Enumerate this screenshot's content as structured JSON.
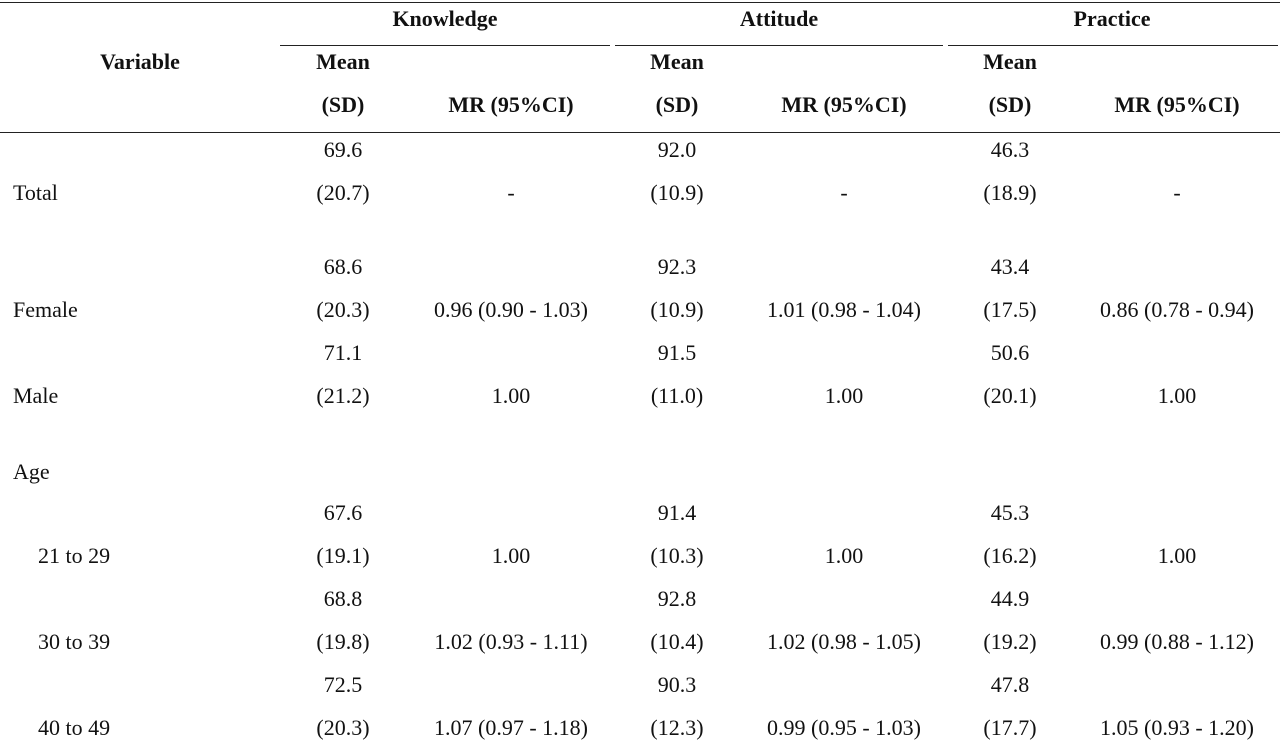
{
  "header": {
    "variable": "Variable",
    "groups": [
      "Knowledge",
      "Attitude",
      "Practice"
    ],
    "mean_line1": "Mean",
    "mean_line2": "(SD)",
    "mr_label": "MR (95%CI)"
  },
  "rows": [
    {
      "label": "Total",
      "cells": [
        {
          "mean": "69.6",
          "sd": "(20.7)",
          "mr": "-"
        },
        {
          "mean": "92.0",
          "sd": "(10.9)",
          "mr": "-"
        },
        {
          "mean": "46.3",
          "sd": "(18.9)",
          "mr": "-"
        }
      ]
    },
    {
      "label": "Female",
      "cells": [
        {
          "mean": "68.6",
          "sd": "(20.3)",
          "mr": "0.96 (0.90 - 1.03)"
        },
        {
          "mean": "92.3",
          "sd": "(10.9)",
          "mr": "1.01 (0.98 - 1.04)"
        },
        {
          "mean": "43.4",
          "sd": "(17.5)",
          "mr": "0.86 (0.78 - 0.94)"
        }
      ]
    },
    {
      "label": "Male",
      "cells": [
        {
          "mean": "71.1",
          "sd": "(21.2)",
          "mr": "1.00"
        },
        {
          "mean": "91.5",
          "sd": "(11.0)",
          "mr": "1.00"
        },
        {
          "mean": "50.6",
          "sd": "(20.1)",
          "mr": "1.00"
        }
      ]
    },
    {
      "label": "Age",
      "cells": []
    },
    {
      "label": "21 to 29",
      "cells": [
        {
          "mean": "67.6",
          "sd": "(19.1)",
          "mr": "1.00"
        },
        {
          "mean": "91.4",
          "sd": "(10.3)",
          "mr": "1.00"
        },
        {
          "mean": "45.3",
          "sd": "(16.2)",
          "mr": "1.00"
        }
      ]
    },
    {
      "label": "30 to 39",
      "cells": [
        {
          "mean": "68.8",
          "sd": "(19.8)",
          "mr": "1.02 (0.93 - 1.11)"
        },
        {
          "mean": "92.8",
          "sd": "(10.4)",
          "mr": "1.02 (0.98 - 1.05)"
        },
        {
          "mean": "44.9",
          "sd": "(19.2)",
          "mr": "0.99 (0.88 - 1.12)"
        }
      ]
    },
    {
      "label": "40 to 49",
      "cells": [
        {
          "mean": "72.5",
          "sd": "(20.3)",
          "mr": "1.07 (0.97 - 1.18)"
        },
        {
          "mean": "90.3",
          "sd": "(12.3)",
          "mr": "0.99 (0.95 - 1.03)"
        },
        {
          "mean": "47.8",
          "sd": "(17.7)",
          "mr": "1.05 (0.93 - 1.20)"
        }
      ]
    }
  ]
}
